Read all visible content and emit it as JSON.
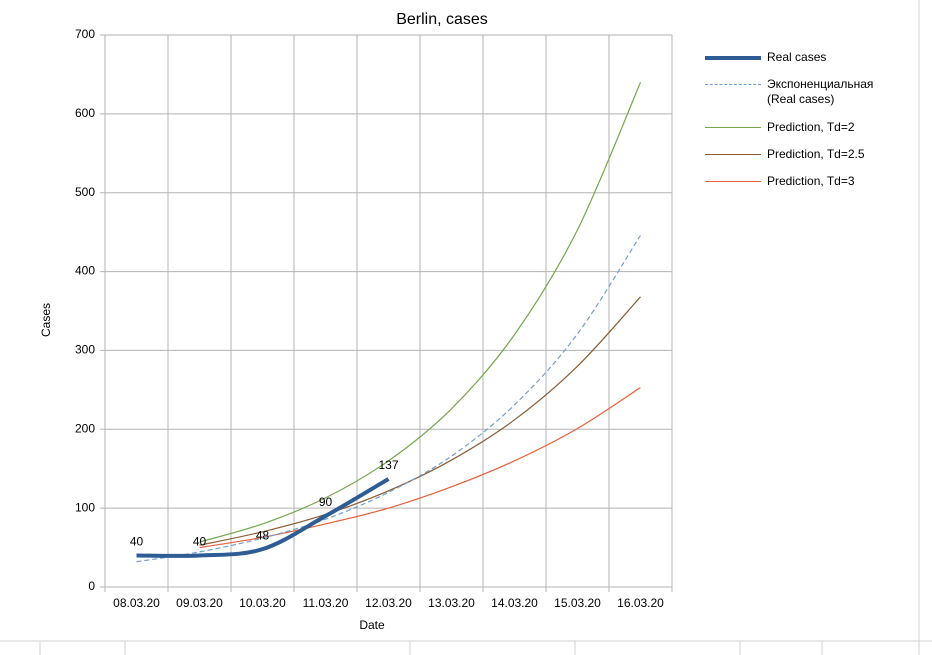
{
  "chart_data": {
    "type": "line",
    "title": "Berlin, cases",
    "x_label": "Date",
    "y_label": "Cases",
    "categories": [
      "08.03.20",
      "09.03.20",
      "10.03.20",
      "11.03.20",
      "12.03.20",
      "13.03.20",
      "14.03.20",
      "15.03.20",
      "16.03.20"
    ],
    "ylim": [
      0,
      700
    ],
    "yticks": [
      0,
      100,
      200,
      300,
      400,
      500,
      600,
      700
    ],
    "grid": true,
    "legend": "right",
    "series": [
      {
        "name": "Real cases",
        "color": "#2e5c94",
        "values": [
          40,
          40,
          48,
          90,
          137,
          null,
          null,
          null,
          null
        ],
        "labels": true
      },
      {
        "name": "Экспоненциальная (Real cases)",
        "color": "#729fcf",
        "dashed": true,
        "values": [
          32,
          44.5,
          62,
          86,
          120,
          166,
          231,
          321,
          446
        ]
      },
      {
        "name": "Prediction, Td=2",
        "color": "#72a84a",
        "values": [
          null,
          57,
          80,
          113,
          160,
          226,
          320,
          453,
          640
        ]
      },
      {
        "name": "Prediction, Td=2.5",
        "color": "#8b5a32",
        "values": [
          null,
          53,
          70,
          92,
          122,
          161,
          212,
          280,
          368
        ]
      },
      {
        "name": "Prediction, Td=3",
        "color": "#e8603a",
        "values": [
          null,
          50,
          63,
          80,
          100,
          127,
          160,
          201,
          253
        ]
      }
    ]
  }
}
